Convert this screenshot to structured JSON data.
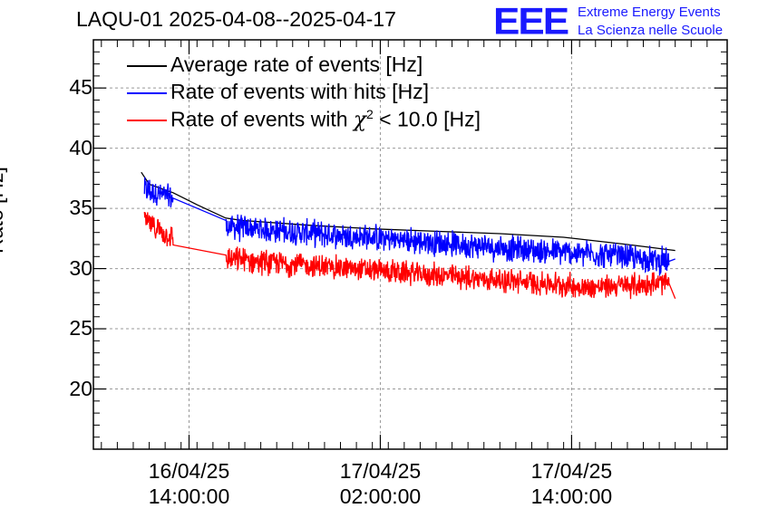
{
  "chart_data": {
    "type": "line",
    "title": "LAQU-01 2025-04-08--2025-04-17",
    "ylabel": "Rate [Hz]",
    "xlabel": "",
    "ylim": [
      15,
      49
    ],
    "xlim_hours": [
      0,
      33
    ],
    "yticks": [
      20,
      25,
      30,
      35,
      40,
      45
    ],
    "xticks": [
      {
        "hour": 2.5,
        "date": "16/04/25",
        "time": "14:00:00"
      },
      {
        "hour": 14.5,
        "date": "17/04/25",
        "time": "02:00:00"
      },
      {
        "hour": 26.5,
        "date": "17/04/25",
        "time": "14:00:00"
      }
    ],
    "grid": true,
    "legend_position": "top-left",
    "series": [
      {
        "name": "Average rate of events [Hz]",
        "color": "#000000",
        "segments": [
          {
            "x": [
              -0.5,
              0.0,
              1.5,
              3.0,
              4.8
            ],
            "y": [
              38.0,
              37.0,
              36.3,
              35.3,
              34.2
            ]
          },
          {
            "x": [
              5.8,
              10,
              14,
              18,
              22,
              26,
              30,
              33.0
            ],
            "y": [
              34.0,
              33.6,
              33.3,
              33.1,
              32.9,
              32.6,
              32.0,
              31.5
            ]
          }
        ]
      },
      {
        "name": "Rate of events with hits [Hz]",
        "color": "#0000ff",
        "noisy": {
          "amp": 1.3
        },
        "segments": [
          {
            "x": [
              -0.3,
              1.5
            ],
            "y": [
              36.6,
              35.8
            ]
          },
          {
            "x": [
              4.8,
              27.3
            ],
            "y": [
              33.5,
              31.2
            ]
          },
          {
            "x": [
              27.3,
              32.6
            ],
            "y": [
              31.3,
              30.6
            ]
          },
          {
            "x": [
              32.6,
              33.0
            ],
            "y": [
              30.6,
              30.8
            ]
          }
        ]
      },
      {
        "name": "Rate of events with χ² < 10.0 [Hz]",
        "color": "#ff0000",
        "noisy": {
          "amp": 1.2
        },
        "segments": [
          {
            "x": [
              -0.3,
              1.5
            ],
            "y": [
              34.0,
              32.5
            ]
          },
          {
            "x": [
              4.8,
              27.3
            ],
            "y": [
              30.8,
              28.5
            ]
          },
          {
            "x": [
              27.3,
              32.6
            ],
            "y": [
              28.4,
              28.8
            ]
          },
          {
            "x": [
              32.6,
              33.0
            ],
            "y": [
              28.8,
              27.5
            ]
          }
        ]
      }
    ]
  },
  "header": {
    "title": "LAQU-01 2025-04-08--2025-04-17",
    "logo": "EEE",
    "logo_line1": "Extreme Energy Events",
    "logo_line2": "La Scienza nelle Scuole"
  },
  "legend": {
    "avg": "Average rate of events [Hz]",
    "hits": "Rate of events with hits [Hz]",
    "chi_prefix": "Rate of events with ",
    "chi_symbol": "χ",
    "chi_sup": "2",
    "chi_suffix": " < 10.0 [Hz]"
  },
  "colors": {
    "avg": "#000000",
    "hits": "#0000ff",
    "chi": "#ff0000",
    "logo": "#1a1aff"
  }
}
